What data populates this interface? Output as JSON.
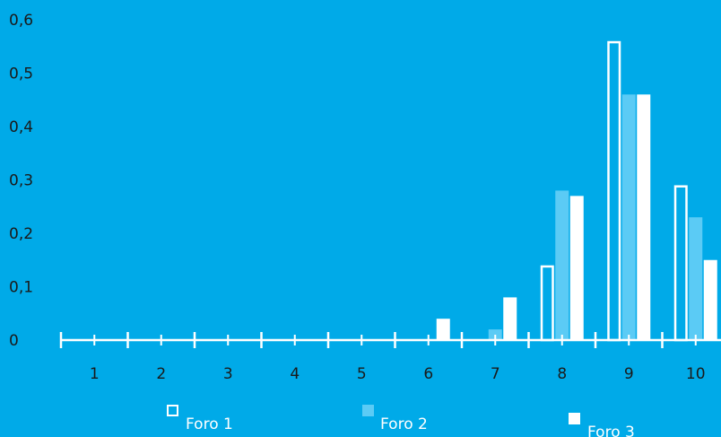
{
  "chart_data": {
    "type": "bar",
    "categories": [
      "1",
      "2",
      "3",
      "4",
      "5",
      "6",
      "7",
      "8",
      "9",
      "10"
    ],
    "series": [
      {
        "name": "Foro 1",
        "values": [
          0,
          0,
          0,
          0,
          0,
          0,
          0,
          0.14,
          0.56,
          0.29
        ],
        "style": "outline"
      },
      {
        "name": "Foro 2",
        "values": [
          0,
          0,
          0,
          0,
          0,
          0,
          0.02,
          0.28,
          0.46,
          0.23
        ],
        "style": "light-fill"
      },
      {
        "name": "Foro 3",
        "values": [
          0,
          0,
          0,
          0,
          0,
          0.04,
          0.08,
          0.27,
          0.46,
          0.15
        ],
        "style": "white-fill"
      }
    ],
    "y_ticks": [
      "0",
      "0,1",
      "0,2",
      "0,3",
      "0,4",
      "0,5",
      "0,6"
    ],
    "ylim": [
      0,
      0.6
    ],
    "title": "",
    "xlabel": "",
    "ylabel": "",
    "grid": false,
    "legend_position": "bottom"
  },
  "colors": {
    "background": "#00AAE8",
    "axis": "#FFFFFF",
    "foro1_outline": "#FFFFFF",
    "foro2_fill": "#5BCBF5",
    "foro3_fill": "#FFFFFF",
    "tick_text": "#1A1A1A",
    "legend_text": "#FFFFFF"
  }
}
